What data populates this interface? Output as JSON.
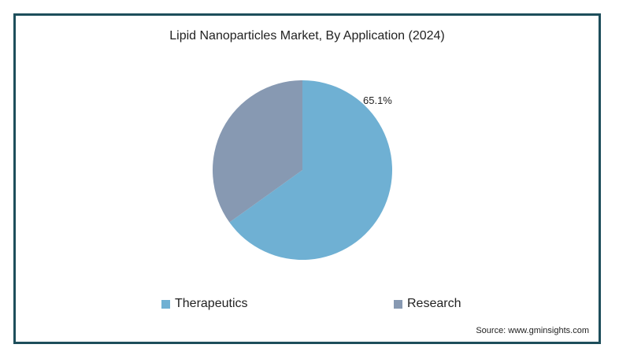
{
  "chart_data": {
    "type": "pie",
    "title": "Lipid Nanoparticles Market, By Application (2024)",
    "slices": [
      {
        "name": "Therapeutics",
        "value": 65.1,
        "label": "65.1%",
        "color": "#6fb0d3"
      },
      {
        "name": "Research",
        "value": 34.9,
        "label": "",
        "color": "#8799b2"
      }
    ],
    "legend_placement": "bottom"
  },
  "source": "Source: www.gminsights.com",
  "colors": {
    "border": "#1d4e5b"
  }
}
